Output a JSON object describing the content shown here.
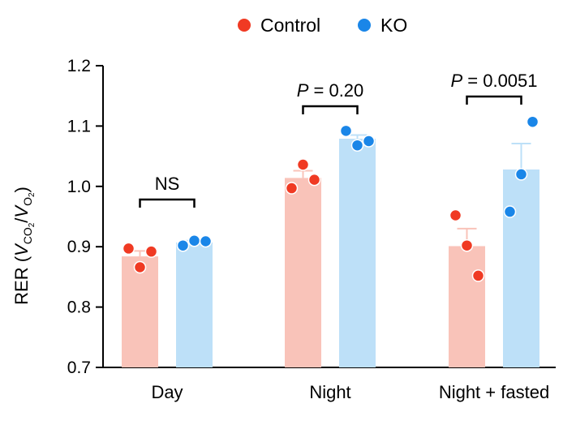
{
  "chart_data": {
    "type": "bar",
    "categories": [
      "Day",
      "Night",
      "Night + fasted"
    ],
    "ylabel": {
      "prefix": "RER (",
      "v1": "V",
      "sub1": "CO",
      "sub1b": "2",
      "slash": "/",
      "v2": "V",
      "sub2": "O",
      "sub2b": "2",
      "suffix": ")"
    },
    "ylim": [
      0.7,
      1.2
    ],
    "yticks": [
      "0.7",
      "0.8",
      "0.9",
      "1.0",
      "1.1",
      "1.2"
    ],
    "legend_position": "top-center",
    "series": [
      {
        "name": "Control",
        "bar_color": "#f9c3b9",
        "point_color": "#f03a23",
        "values": [
          0.884,
          1.014,
          0.901
        ],
        "errors": [
          0.009,
          0.012,
          0.029
        ],
        "points": [
          [
            0.897,
            0.866,
            0.892
          ],
          [
            0.997,
            1.036,
            1.011
          ],
          [
            0.952,
            0.902,
            0.852
          ]
        ]
      },
      {
        "name": "KO",
        "bar_color": "#bde0f8",
        "point_color": "#1a86e8",
        "values": [
          0.907,
          1.079,
          1.028
        ],
        "errors": [
          0.003,
          0.006,
          0.043
        ],
        "points": [
          [
            0.902,
            0.91,
            0.909
          ],
          [
            1.092,
            1.068,
            1.075
          ],
          [
            0.958,
            1.02,
            1.107
          ]
        ]
      }
    ],
    "annotations": [
      {
        "category_index": 0,
        "text": "NS"
      },
      {
        "category_index": 1,
        "text_italic": "P",
        "text_rest": " = 0.20"
      },
      {
        "category_index": 2,
        "text_italic": "P",
        "text_rest": " = 0.0051"
      }
    ]
  }
}
